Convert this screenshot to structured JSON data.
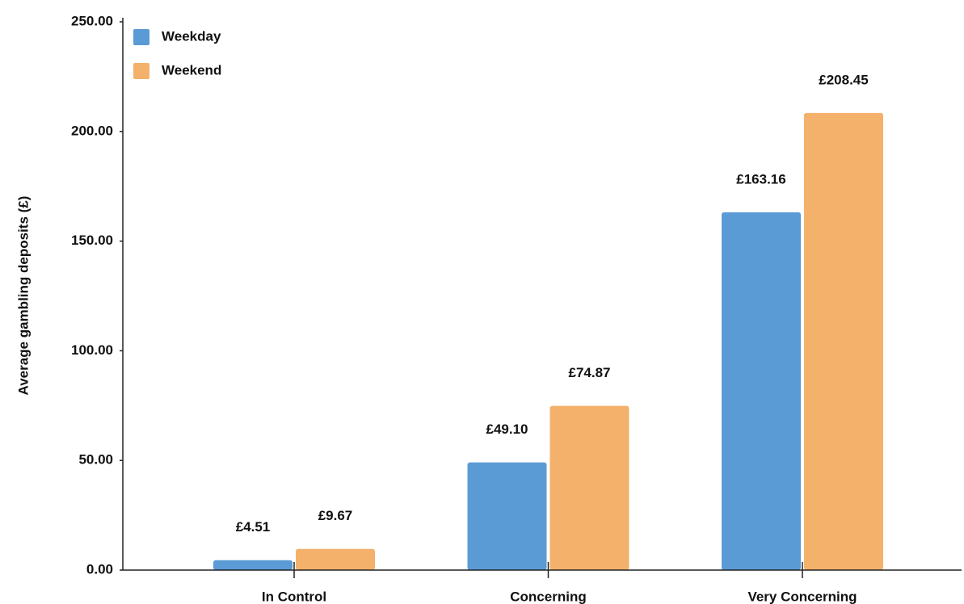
{
  "chart_data": {
    "type": "bar",
    "ylabel": "Average gambling deposits (£)",
    "categories": [
      "In Control",
      "Concerning",
      "Very Concerning"
    ],
    "series": [
      {
        "name": "Weekday",
        "color": "#5b9bd5",
        "values": [
          4.51,
          49.1,
          163.16
        ],
        "value_labels": [
          "£4.51",
          "£49.10",
          "£163.16"
        ]
      },
      {
        "name": "Weekend",
        "color": "#f4b16b",
        "values": [
          9.67,
          74.87,
          208.45
        ],
        "value_labels": [
          "£9.67",
          "£74.87",
          "£208.45"
        ]
      }
    ],
    "ylim": [
      0,
      250
    ],
    "yticks": [
      {
        "value": 0,
        "label": "0.00"
      },
      {
        "value": 50,
        "label": "50.00"
      },
      {
        "value": 100,
        "label": "100.00"
      },
      {
        "value": 150,
        "label": "150.00"
      },
      {
        "value": 200,
        "label": "200.00"
      },
      {
        "value": 250,
        "label": "250.00"
      }
    ],
    "legend": "top-left"
  }
}
